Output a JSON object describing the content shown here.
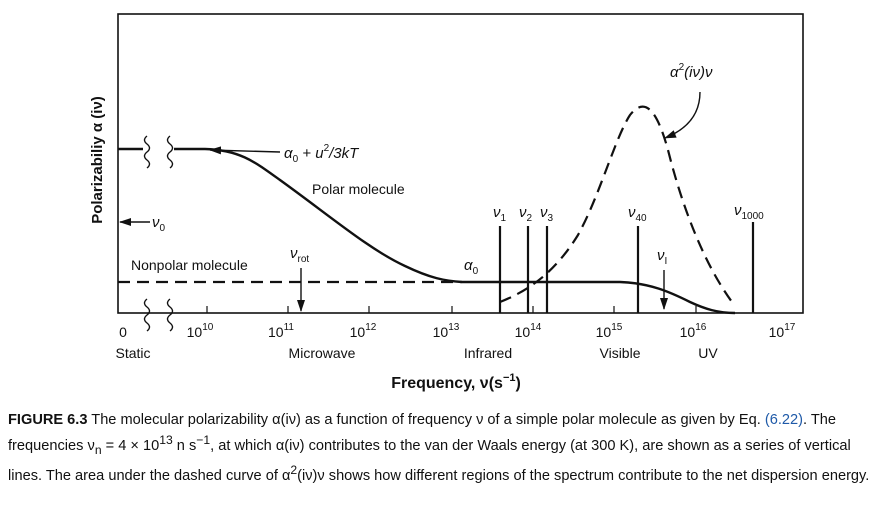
{
  "figure": {
    "y_axis_label": "Polarizabiliy α (iν)",
    "x_axis_label": "Frequency, ν(s",
    "x_axis_label_exp": "−1",
    "x_axis_label_close": ")",
    "ticks": [
      {
        "mant": "0",
        "exp": ""
      },
      {
        "mant": "10",
        "exp": "10"
      },
      {
        "mant": "10",
        "exp": "11"
      },
      {
        "mant": "10",
        "exp": "12"
      },
      {
        "mant": "10",
        "exp": "13"
      },
      {
        "mant": "10",
        "exp": "14"
      },
      {
        "mant": "10",
        "exp": "15"
      },
      {
        "mant": "10",
        "exp": "16"
      },
      {
        "mant": "10",
        "exp": "17"
      }
    ],
    "regions": [
      "Static",
      "Microwave",
      "Infrared",
      "Visible",
      "UV"
    ],
    "labels": {
      "nu0": "ν",
      "nu0_sub": "0",
      "alpha0_eq_a": "α",
      "alpha0_eq_sub": "0",
      "alpha0_eq_b": " + u",
      "alpha0_eq_sup": "2",
      "alpha0_eq_c": "/3kT",
      "polar": "Polar molecule",
      "nonpolar": "Nonpolar molecule",
      "nu_rot": "ν",
      "nu_rot_sub": "rot",
      "alpha0": "α",
      "alpha0_sub": "0",
      "nu_I": "ν",
      "nu_I_sub": "I",
      "curve_a": "α",
      "curve_sup": "2",
      "curve_b": "(iν)ν"
    },
    "vlines": [
      {
        "sym": "ν",
        "sub": "1"
      },
      {
        "sym": "ν",
        "sub": "2"
      },
      {
        "sym": "ν",
        "sub": "3"
      },
      {
        "sym": "ν",
        "sub": "40"
      },
      {
        "sym": "ν",
        "sub": "1000"
      }
    ]
  },
  "caption": {
    "fig_label": "FIGURE 6.3",
    "t1": " The molecular polarizability α(iν) as a function of frequency ν of a simple polar molecule as given by Eq. ",
    "ref": "(6.22)",
    "t2": ". The frequencies ν",
    "sub_n": "n",
    "t3": " = 4 × 10",
    "sup_13": "13",
    "t4": " n s",
    "sup_m1": "−1",
    "t5": ", at which α(iν) contributes to the van der Waals energy (at 300 K), are shown as a series of vertical lines. The area under the dashed curve of α",
    "sup_2": "2",
    "t6": "(iν)ν shows how different regions of the spectrum contribute to the net dispersion energy."
  }
}
